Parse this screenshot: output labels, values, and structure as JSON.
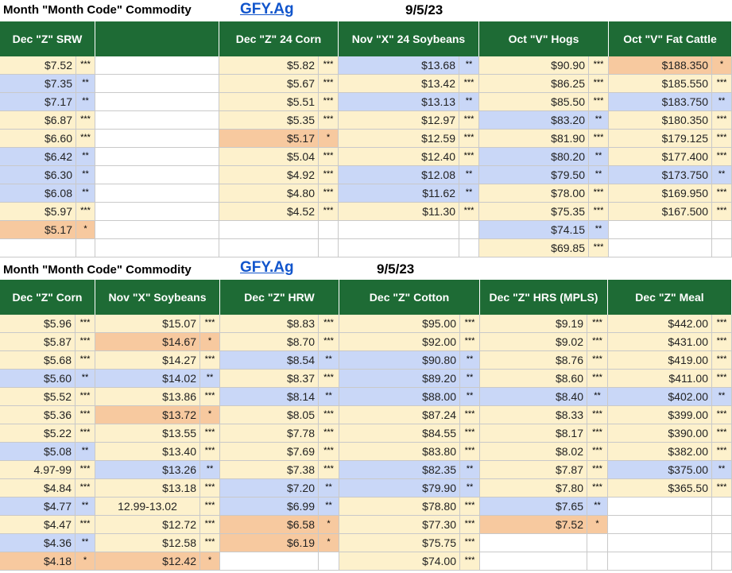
{
  "section1": {
    "title": "Month \"Month Code\" Commodity",
    "link": "GFY.Ag",
    "date": "9/5/23",
    "headers": [
      "Dec \"Z\" SRW",
      "",
      "Dec \"Z\" 24 Corn",
      "Nov \"X\" 24 Soybeans",
      "Oct \"V\" Hogs",
      "Oct \"V\" Fat Cattle"
    ],
    "rows": [
      [
        [
          "$7.52",
          "***",
          "y"
        ],
        null,
        [
          "$5.82",
          "***",
          "y"
        ],
        [
          "$13.68",
          "**",
          "b"
        ],
        [
          "$90.90",
          "***",
          "y"
        ],
        [
          "$188.350",
          "*",
          "o"
        ]
      ],
      [
        [
          "$7.35",
          "**",
          "b"
        ],
        null,
        [
          "$5.67",
          "***",
          "y"
        ],
        [
          "$13.42",
          "***",
          "y"
        ],
        [
          "$86.25",
          "***",
          "y"
        ],
        [
          "$185.550",
          "***",
          "y"
        ]
      ],
      [
        [
          "$7.17",
          "**",
          "b"
        ],
        null,
        [
          "$5.51",
          "***",
          "y"
        ],
        [
          "$13.13",
          "**",
          "b"
        ],
        [
          "$85.50",
          "***",
          "y"
        ],
        [
          "$183.750",
          "**",
          "b"
        ]
      ],
      [
        [
          "$6.87",
          "***",
          "y"
        ],
        null,
        [
          "$5.35",
          "***",
          "y"
        ],
        [
          "$12.97",
          "***",
          "y"
        ],
        [
          "$83.20",
          "**",
          "b"
        ],
        [
          "$180.350",
          "***",
          "y"
        ]
      ],
      [
        [
          "$6.60",
          "***",
          "y"
        ],
        null,
        [
          "$5.17",
          "*",
          "o"
        ],
        [
          "$12.59",
          "***",
          "y"
        ],
        [
          "$81.90",
          "***",
          "y"
        ],
        [
          "$179.125",
          "***",
          "y"
        ]
      ],
      [
        [
          "$6.42",
          "**",
          "b"
        ],
        null,
        [
          "$5.04",
          "***",
          "y"
        ],
        [
          "$12.40",
          "***",
          "y"
        ],
        [
          "$80.20",
          "**",
          "b"
        ],
        [
          "$177.400",
          "***",
          "y"
        ]
      ],
      [
        [
          "$6.30",
          "**",
          "b"
        ],
        null,
        [
          "$4.92",
          "***",
          "y"
        ],
        [
          "$12.08",
          "**",
          "b"
        ],
        [
          "$79.50",
          "**",
          "b"
        ],
        [
          "$173.750",
          "**",
          "b"
        ]
      ],
      [
        [
          "$6.08",
          "**",
          "b"
        ],
        null,
        [
          "$4.80",
          "***",
          "y"
        ],
        [
          "$11.62",
          "**",
          "b"
        ],
        [
          "$78.00",
          "***",
          "y"
        ],
        [
          "$169.950",
          "***",
          "y"
        ]
      ],
      [
        [
          "$5.97",
          "***",
          "y"
        ],
        null,
        [
          "$4.52",
          "***",
          "y"
        ],
        [
          "$11.30",
          "***",
          "y"
        ],
        [
          "$75.35",
          "***",
          "y"
        ],
        [
          "$167.500",
          "***",
          "y"
        ]
      ],
      [
        [
          "$5.17",
          "*",
          "o"
        ],
        null,
        null,
        null,
        [
          "$74.15",
          "**",
          "b"
        ],
        null
      ],
      [
        null,
        null,
        null,
        null,
        [
          "$69.85",
          "***",
          "y"
        ],
        null
      ]
    ]
  },
  "section2": {
    "title": "Month \"Month Code\" Commodity",
    "link": "GFY.Ag",
    "date": "9/5/23",
    "headers": [
      "Dec \"Z\" Corn",
      "Nov \"X\" Soybeans",
      "Dec \"Z\" HRW",
      "Dec \"Z\" Cotton",
      "Dec \"Z\" HRS (MPLS)",
      "Dec \"Z\" Meal"
    ],
    "rows": [
      [
        [
          "$5.96",
          "***",
          "y"
        ],
        [
          "$15.07",
          "***",
          "y"
        ],
        [
          "$8.83",
          "***",
          "y"
        ],
        [
          "$95.00",
          "***",
          "y"
        ],
        [
          "$9.19",
          "***",
          "y"
        ],
        [
          "$442.00",
          "***",
          "y"
        ]
      ],
      [
        [
          "$5.87",
          "***",
          "y"
        ],
        [
          "$14.67",
          "*",
          "o"
        ],
        [
          "$8.70",
          "***",
          "y"
        ],
        [
          "$92.00",
          "***",
          "y"
        ],
        [
          "$9.02",
          "***",
          "y"
        ],
        [
          "$431.00",
          "***",
          "y"
        ]
      ],
      [
        [
          "$5.68",
          "***",
          "y"
        ],
        [
          "$14.27",
          "***",
          "y"
        ],
        [
          "$8.54",
          "**",
          "b"
        ],
        [
          "$90.80",
          "**",
          "b"
        ],
        [
          "$8.76",
          "***",
          "y"
        ],
        [
          "$419.00",
          "***",
          "y"
        ]
      ],
      [
        [
          "$5.60",
          "**",
          "b"
        ],
        [
          "$14.02",
          "**",
          "b"
        ],
        [
          "$8.37",
          "***",
          "y"
        ],
        [
          "$89.20",
          "**",
          "b"
        ],
        [
          "$8.60",
          "***",
          "y"
        ],
        [
          "$411.00",
          "***",
          "y"
        ]
      ],
      [
        [
          "$5.52",
          "***",
          "y"
        ],
        [
          "$13.86",
          "***",
          "y"
        ],
        [
          "$8.14",
          "**",
          "b"
        ],
        [
          "$88.00",
          "**",
          "b"
        ],
        [
          "$8.40",
          "**",
          "b"
        ],
        [
          "$402.00",
          "**",
          "b"
        ]
      ],
      [
        [
          "$5.36",
          "***",
          "y"
        ],
        [
          "$13.72",
          "*",
          "o"
        ],
        [
          "$8.05",
          "***",
          "y"
        ],
        [
          "$87.24",
          "***",
          "y"
        ],
        [
          "$8.33",
          "***",
          "y"
        ],
        [
          "$399.00",
          "***",
          "y"
        ]
      ],
      [
        [
          "$5.22",
          "***",
          "y"
        ],
        [
          "$13.55",
          "***",
          "y"
        ],
        [
          "$7.78",
          "***",
          "y"
        ],
        [
          "$84.55",
          "***",
          "y"
        ],
        [
          "$8.17",
          "***",
          "y"
        ],
        [
          "$390.00",
          "***",
          "y"
        ]
      ],
      [
        [
          "$5.08",
          "**",
          "b"
        ],
        [
          "$13.40",
          "***",
          "y"
        ],
        [
          "$7.69",
          "***",
          "y"
        ],
        [
          "$83.80",
          "***",
          "y"
        ],
        [
          "$8.02",
          "***",
          "y"
        ],
        [
          "$382.00",
          "***",
          "y"
        ]
      ],
      [
        [
          "4.97-99",
          "***",
          "y"
        ],
        [
          "$13.26",
          "**",
          "b"
        ],
        [
          "$7.38",
          "***",
          "y"
        ],
        [
          "$82.35",
          "**",
          "b"
        ],
        [
          "$7.87",
          "***",
          "y"
        ],
        [
          "$375.00",
          "**",
          "b"
        ]
      ],
      [
        [
          "$4.84",
          "***",
          "y"
        ],
        [
          "$13.18",
          "***",
          "y"
        ],
        [
          "$7.20",
          "**",
          "b"
        ],
        [
          "$79.90",
          "**",
          "b"
        ],
        [
          "$7.80",
          "***",
          "y"
        ],
        [
          "$365.50",
          "***",
          "y"
        ]
      ],
      [
        [
          "$4.77",
          "**",
          "b"
        ],
        [
          "12.99-13.02",
          "***",
          "y"
        ],
        [
          "$6.99",
          "**",
          "b"
        ],
        [
          "$78.80",
          "***",
          "y"
        ],
        [
          "$7.65",
          "**",
          "b"
        ],
        null
      ],
      [
        [
          "$4.47",
          "***",
          "y"
        ],
        [
          "$12.72",
          "***",
          "y"
        ],
        [
          "$6.58",
          "*",
          "o"
        ],
        [
          "$77.30",
          "***",
          "y"
        ],
        [
          "$7.52",
          "*",
          "o"
        ],
        null
      ],
      [
        [
          "$4.36",
          "**",
          "b"
        ],
        [
          "$12.58",
          "***",
          "y"
        ],
        [
          "$6.19",
          "*",
          "o"
        ],
        [
          "$75.75",
          "***",
          "y"
        ],
        null,
        null
      ],
      [
        [
          "$4.18",
          "*",
          "o"
        ],
        [
          "$12.42",
          "*",
          "o"
        ],
        null,
        [
          "$74.00",
          "***",
          "y"
        ],
        null,
        null
      ]
    ]
  },
  "colors": {
    "header_green": "#1e6b35",
    "level_yellow": "#fdf1cc",
    "level_blue": "#c9d7f7",
    "level_orange": "#f7c99f",
    "link_blue": "#1155cc"
  }
}
